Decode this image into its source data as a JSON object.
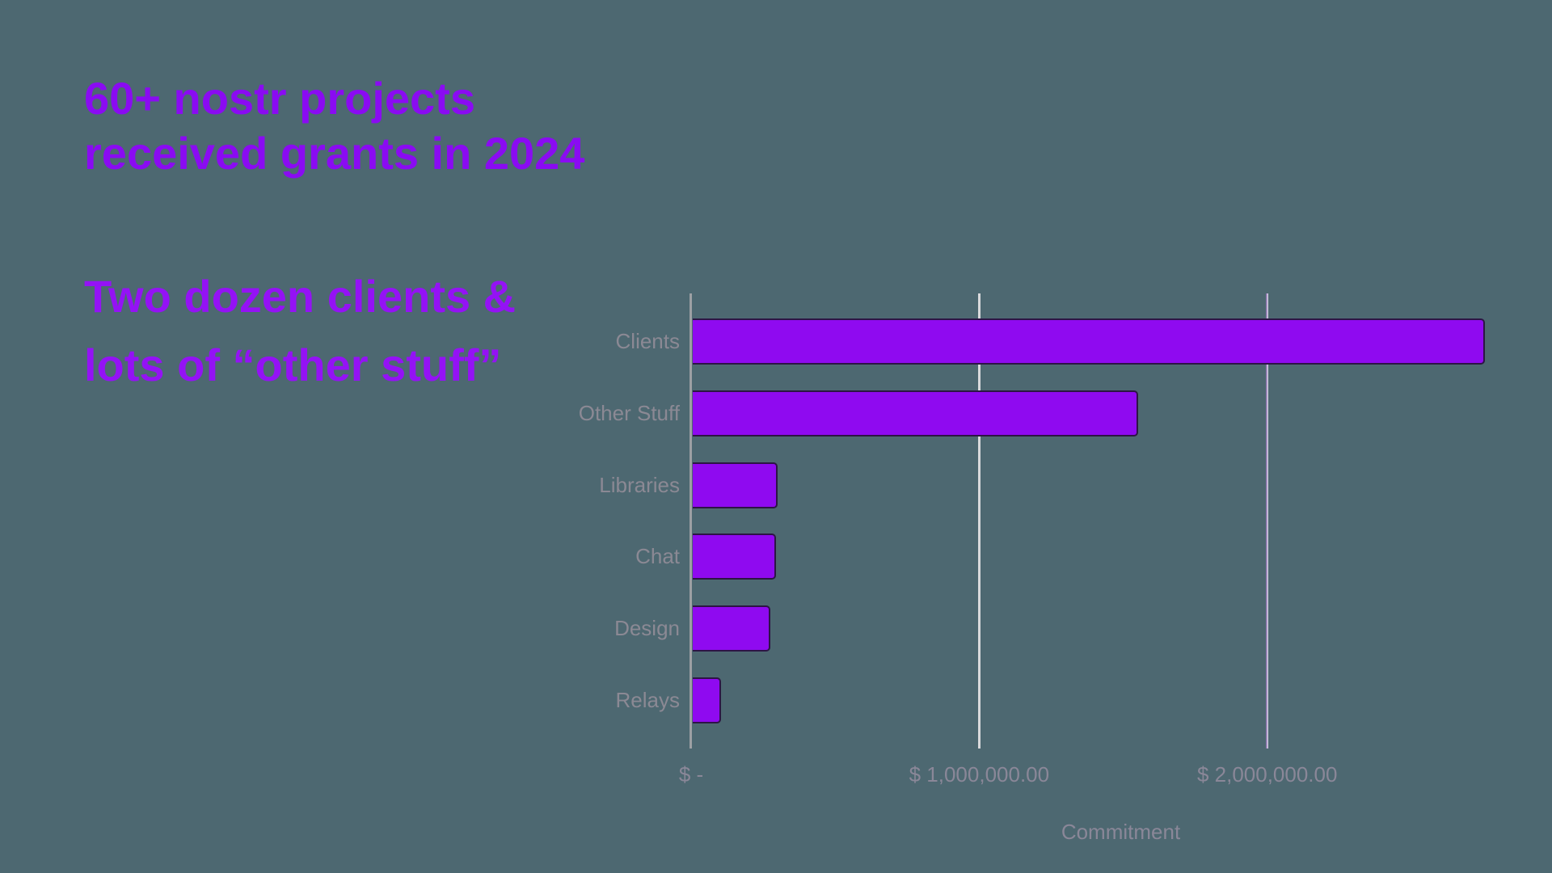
{
  "page": {
    "background_color": "#4d6871"
  },
  "title": {
    "line1": "60+ nostr projects",
    "line2": "received grants in 2024",
    "color": "#8a0bf2"
  },
  "subtitle": {
    "line1": "Two dozen clients &",
    "line2": "lots of “other stuff”",
    "color": "#9412f5"
  },
  "chart_data": {
    "type": "bar",
    "orientation": "horizontal",
    "title": "",
    "categories": [
      "Clients",
      "Other Stuff",
      "Libraries",
      "Chat",
      "Design",
      "Relays"
    ],
    "values": [
      2745000,
      1545000,
      295000,
      290000,
      270000,
      100000
    ],
    "series_name": "Commitment",
    "xlabel": "Commitment",
    "ylabel": "",
    "xlim": [
      0,
      2983000
    ],
    "x_ticks": [
      {
        "value": 0,
        "label": "$ -"
      },
      {
        "value": 1000000,
        "label": "$ 1,000,000.00"
      },
      {
        "value": 2000000,
        "label": "$ 2,000,000.00"
      }
    ],
    "gridlines": [
      {
        "value": 1000000,
        "color_left": "#d9d9dc",
        "color_right": "#d9d9dc"
      },
      {
        "value": 2000000,
        "color_left": "#8a74ad",
        "color_right": "#d6cde4"
      }
    ],
    "grid": true,
    "legend": false,
    "bar_color": "#8f0af0",
    "bar_border_color": "#2d1545",
    "axis_line_color": "#9da0a4",
    "category_label_color": "#8b8994",
    "tick_label_color": "#8a8798"
  }
}
